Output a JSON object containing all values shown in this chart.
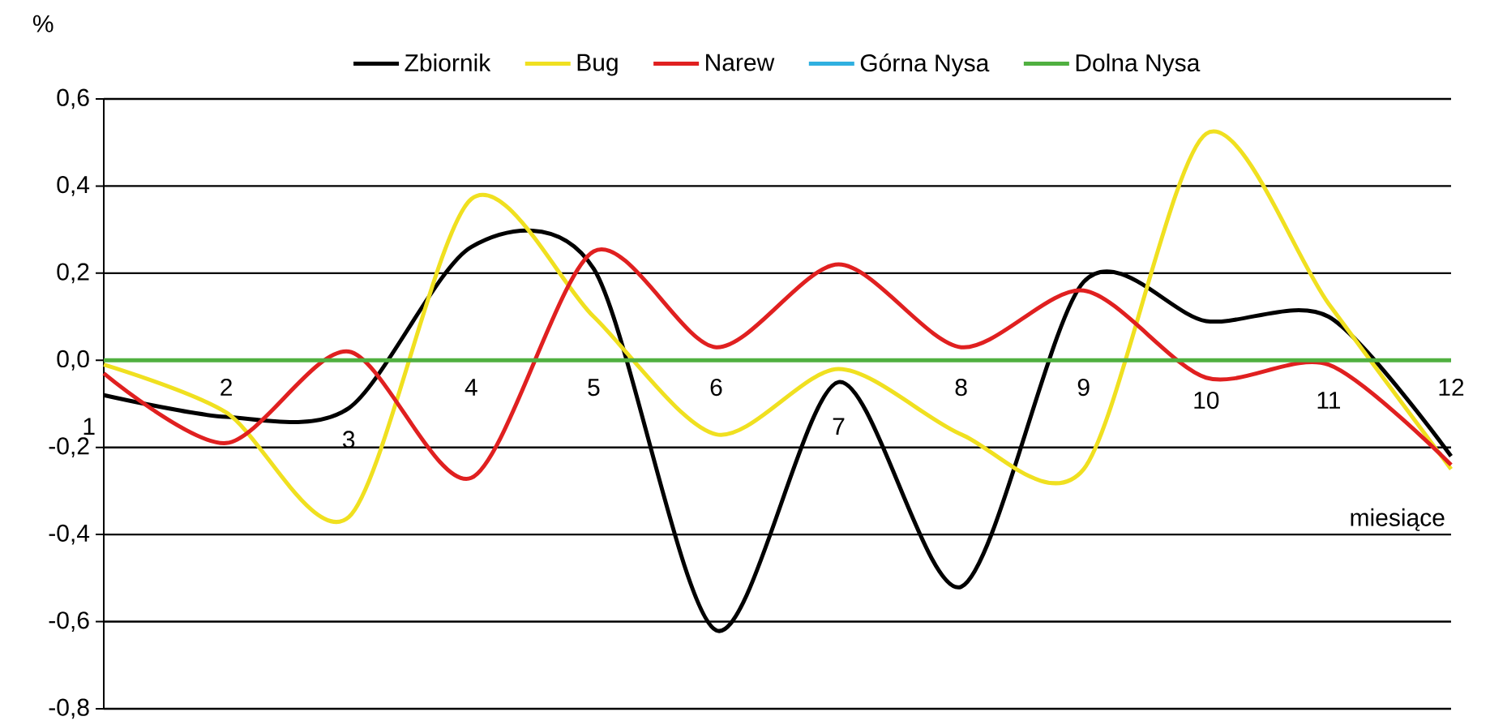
{
  "chart_data": {
    "type": "line",
    "xlabel": "miesiące",
    "ylabel": "%",
    "categories": [
      "1",
      "2",
      "3",
      "4",
      "5",
      "6",
      "7",
      "8",
      "9",
      "10",
      "11",
      "12"
    ],
    "series": [
      {
        "name": "Zbiornik",
        "color": "#000000",
        "values": [
          -0.08,
          -0.13,
          -0.11,
          0.26,
          0.21,
          -0.62,
          -0.05,
          -0.52,
          0.18,
          0.09,
          0.1,
          -0.22
        ]
      },
      {
        "name": "Bug",
        "color": "#f0e020",
        "values": [
          -0.01,
          -0.12,
          -0.36,
          0.37,
          0.1,
          -0.17,
          -0.02,
          -0.17,
          -0.25,
          0.52,
          0.13,
          -0.25
        ]
      },
      {
        "name": "Narew",
        "color": "#e02020",
        "values": [
          -0.03,
          -0.19,
          0.02,
          -0.27,
          0.25,
          0.03,
          0.22,
          0.03,
          0.16,
          -0.04,
          -0.01,
          -0.24
        ]
      },
      {
        "name": "Górna Nysa",
        "color": "#30b0e0",
        "values": [
          null,
          null,
          null,
          null,
          null,
          null,
          null,
          null,
          null,
          null,
          null,
          null
        ]
      },
      {
        "name": "Dolna Nysa",
        "color": "#50b040",
        "values": [
          0,
          0,
          0,
          0,
          0,
          0,
          0,
          0,
          0,
          0,
          0,
          0
        ]
      }
    ],
    "ylim": [
      -0.8,
      0.6
    ],
    "yticks": [
      {
        "value": -0.8,
        "label": "-0,8"
      },
      {
        "value": -0.6,
        "label": "-0,6"
      },
      {
        "value": -0.4,
        "label": "-0,4"
      },
      {
        "value": -0.2,
        "label": "-0,2"
      },
      {
        "value": 0,
        "label": "0,0"
      },
      {
        "value": 0.2,
        "label": "0,2"
      },
      {
        "value": 0.4,
        "label": "0,4"
      },
      {
        "value": 0.6,
        "label": "0,6"
      }
    ],
    "grid": "y",
    "legend": "top"
  }
}
